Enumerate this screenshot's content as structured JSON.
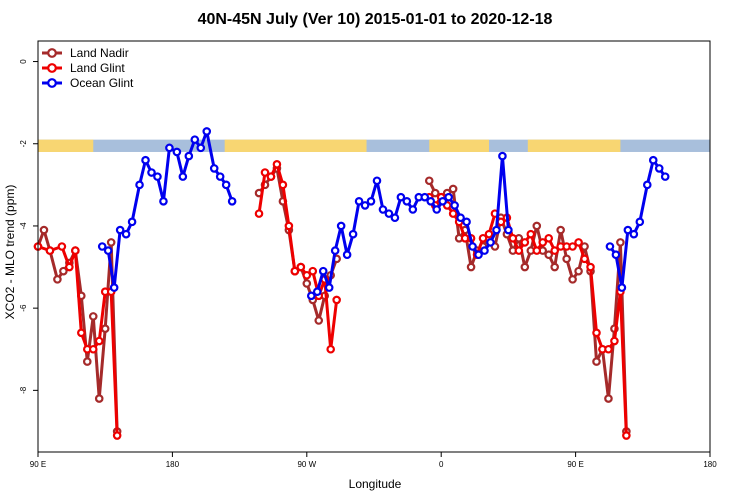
{
  "chart_data": {
    "type": "line",
    "title": "40N-45N July (Ver 10)   2015-01-01 to 2020-12-18",
    "xlabel": "Longitude",
    "ylabel": "XCO2 - MLO trend (ppm)",
    "xlim": [
      0,
      450
    ],
    "ylim": [
      -9.5,
      0.5
    ],
    "x_ticks": [
      {
        "value": 0,
        "label": "90 E"
      },
      {
        "value": 90,
        "label": "180"
      },
      {
        "value": 180,
        "label": "90 W"
      },
      {
        "value": 270,
        "label": "0"
      },
      {
        "value": 360,
        "label": "90 E"
      },
      {
        "value": 450,
        "label": "180"
      }
    ],
    "y_ticks": [
      {
        "value": 0,
        "label": "0"
      },
      {
        "value": -2,
        "label": "-2"
      },
      {
        "value": -4,
        "label": "-4"
      },
      {
        "value": -6,
        "label": "-6"
      },
      {
        "value": -8,
        "label": "-8"
      }
    ],
    "legend_position": "top-left",
    "grid": false,
    "land_mask_strip": {
      "y_top": -1.9,
      "y_bottom": -2.2,
      "ocean_color": "#a8bfdc",
      "land_color": "#f8d672",
      "land_ranges": [
        [
          0,
          37
        ],
        [
          125,
          220
        ],
        [
          262,
          302
        ],
        [
          328,
          390
        ]
      ]
    },
    "series": [
      {
        "name": "Land Nadir",
        "color": "#a52a2a",
        "points": [
          [
            0,
            -4.5
          ],
          [
            4,
            -4.1
          ],
          [
            8,
            -4.6
          ],
          [
            13,
            -5.3
          ],
          [
            17,
            -5.1
          ],
          [
            21,
            -4.9
          ],
          [
            25,
            -4.6
          ],
          [
            29,
            -5.7
          ],
          [
            33,
            -7.3
          ],
          [
            37,
            -6.2
          ],
          [
            41,
            -8.2
          ],
          [
            45,
            -6.5
          ],
          [
            49,
            -4.4
          ],
          [
            53,
            -9.0
          ],
          null,
          [
            148,
            -3.2
          ],
          [
            152,
            -3.0
          ],
          [
            156,
            -2.8
          ],
          [
            160,
            -2.6
          ],
          [
            164,
            -3.4
          ],
          [
            168,
            -4.1
          ],
          [
            172,
            -5.1
          ],
          [
            176,
            -5.0
          ],
          [
            180,
            -5.4
          ],
          [
            184,
            -5.8
          ],
          [
            188,
            -6.3
          ],
          [
            192,
            -5.7
          ],
          [
            196,
            -5.2
          ],
          [
            200,
            -4.8
          ],
          null,
          [
            262,
            -2.9
          ],
          [
            266,
            -3.2
          ],
          [
            270,
            -3.3
          ],
          [
            274,
            -3.2
          ],
          [
            278,
            -3.1
          ],
          [
            282,
            -4.3
          ],
          [
            286,
            -4.1
          ],
          [
            290,
            -5.0
          ],
          [
            294,
            -4.6
          ],
          [
            298,
            -4.5
          ],
          [
            302,
            -4.3
          ],
          [
            306,
            -4.5
          ],
          [
            310,
            -3.8
          ],
          [
            314,
            -4.2
          ],
          [
            318,
            -4.6
          ],
          [
            322,
            -4.3
          ],
          [
            326,
            -5.0
          ],
          [
            330,
            -4.6
          ],
          [
            334,
            -4.0
          ],
          [
            338,
            -4.6
          ],
          [
            342,
            -4.7
          ],
          [
            346,
            -5.0
          ],
          [
            350,
            -4.1
          ],
          [
            354,
            -4.8
          ],
          [
            358,
            -5.3
          ],
          [
            362,
            -5.1
          ],
          [
            366,
            -4.5
          ],
          [
            370,
            -5.1
          ],
          [
            374,
            -7.3
          ],
          [
            378,
            -7.0
          ],
          [
            382,
            -8.2
          ],
          [
            386,
            -6.5
          ],
          [
            390,
            -4.4
          ],
          [
            394,
            -9.0
          ]
        ]
      },
      {
        "name": "Land Glint",
        "color": "#ee0000",
        "points": [
          [
            0,
            -4.5
          ],
          [
            8,
            -4.6
          ],
          [
            16,
            -4.5
          ],
          [
            21,
            -5.0
          ],
          [
            25,
            -4.6
          ],
          [
            29,
            -6.6
          ],
          [
            33,
            -7.0
          ],
          [
            37,
            -7.0
          ],
          [
            41,
            -6.8
          ],
          [
            45,
            -5.6
          ],
          [
            49,
            -5.6
          ],
          [
            53,
            -9.1
          ],
          null,
          [
            148,
            -3.7
          ],
          [
            152,
            -2.7
          ],
          [
            156,
            -2.8
          ],
          [
            160,
            -2.5
          ],
          [
            164,
            -3.0
          ],
          [
            168,
            -4.0
          ],
          [
            172,
            -5.1
          ],
          [
            176,
            -5.0
          ],
          [
            180,
            -5.2
          ],
          [
            184,
            -5.1
          ],
          [
            188,
            -5.7
          ],
          [
            192,
            -5.3
          ],
          [
            196,
            -7.0
          ],
          [
            200,
            -5.8
          ],
          null,
          [
            262,
            -3.3
          ],
          [
            266,
            -3.5
          ],
          [
            270,
            -3.3
          ],
          [
            274,
            -3.5
          ],
          [
            278,
            -3.7
          ],
          [
            282,
            -3.9
          ],
          [
            286,
            -4.3
          ],
          [
            290,
            -4.3
          ],
          [
            294,
            -4.7
          ],
          [
            298,
            -4.3
          ],
          [
            302,
            -4.2
          ],
          [
            306,
            -3.7
          ],
          [
            310,
            -3.9
          ],
          [
            314,
            -3.8
          ],
          [
            318,
            -4.3
          ],
          [
            322,
            -4.6
          ],
          [
            326,
            -4.4
          ],
          [
            330,
            -4.2
          ],
          [
            334,
            -4.6
          ],
          [
            338,
            -4.4
          ],
          [
            342,
            -4.3
          ],
          [
            346,
            -4.6
          ],
          [
            350,
            -4.5
          ],
          [
            354,
            -4.5
          ],
          [
            358,
            -4.5
          ],
          [
            362,
            -4.4
          ],
          [
            366,
            -4.8
          ],
          [
            370,
            -5.0
          ],
          [
            374,
            -6.6
          ],
          [
            378,
            -7.0
          ],
          [
            382,
            -7.0
          ],
          [
            386,
            -6.8
          ],
          [
            390,
            -5.6
          ],
          [
            394,
            -9.1
          ]
        ]
      },
      {
        "name": "Ocean Glint",
        "color": "#0000ee",
        "points": [
          [
            43,
            -4.5
          ],
          [
            47,
            -4.6
          ],
          [
            51,
            -5.5
          ],
          [
            55,
            -4.1
          ],
          [
            59,
            -4.2
          ],
          [
            63,
            -3.9
          ],
          [
            68,
            -3.0
          ],
          [
            72,
            -2.4
          ],
          [
            76,
            -2.7
          ],
          [
            80,
            -2.8
          ],
          [
            84,
            -3.4
          ],
          [
            88,
            -2.1
          ],
          [
            93,
            -2.2
          ],
          [
            97,
            -2.8
          ],
          [
            101,
            -2.3
          ],
          [
            105,
            -1.9
          ],
          [
            109,
            -2.1
          ],
          [
            113,
            -1.7
          ],
          [
            118,
            -2.6
          ],
          [
            122,
            -2.8
          ],
          [
            126,
            -3.0
          ],
          [
            130,
            -3.4
          ],
          null,
          [
            183,
            -5.7
          ],
          [
            187,
            -5.6
          ],
          [
            191,
            -5.1
          ],
          [
            195,
            -5.5
          ],
          [
            199,
            -4.6
          ],
          [
            203,
            -4.0
          ],
          [
            207,
            -4.7
          ],
          [
            211,
            -4.2
          ],
          [
            215,
            -3.4
          ],
          [
            219,
            -3.5
          ],
          [
            223,
            -3.4
          ],
          [
            227,
            -2.9
          ],
          [
            231,
            -3.6
          ],
          [
            235,
            -3.7
          ],
          [
            239,
            -3.8
          ],
          [
            243,
            -3.3
          ],
          [
            247,
            -3.4
          ],
          [
            251,
            -3.6
          ],
          [
            255,
            -3.3
          ],
          [
            259,
            -3.3
          ],
          [
            263,
            -3.4
          ],
          [
            267,
            -3.6
          ],
          [
            271,
            -3.4
          ],
          [
            275,
            -3.3
          ],
          [
            279,
            -3.5
          ],
          [
            283,
            -3.8
          ],
          [
            287,
            -3.9
          ],
          [
            291,
            -4.5
          ],
          [
            295,
            -4.7
          ],
          [
            299,
            -4.6
          ],
          [
            303,
            -4.4
          ],
          [
            307,
            -4.1
          ],
          [
            311,
            -2.3
          ],
          [
            315,
            -4.1
          ],
          null,
          [
            383,
            -4.5
          ],
          [
            387,
            -4.7
          ],
          [
            391,
            -5.5
          ],
          [
            395,
            -4.1
          ],
          [
            399,
            -4.2
          ],
          [
            403,
            -3.9
          ],
          [
            408,
            -3.0
          ],
          [
            412,
            -2.4
          ],
          [
            416,
            -2.6
          ],
          [
            420,
            -2.8
          ]
        ]
      }
    ]
  }
}
